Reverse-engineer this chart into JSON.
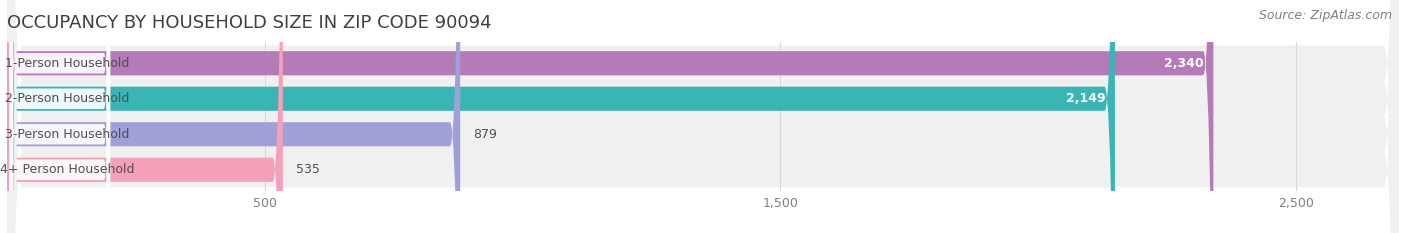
{
  "title": "OCCUPANCY BY HOUSEHOLD SIZE IN ZIP CODE 90094",
  "source": "Source: ZipAtlas.com",
  "categories": [
    "1-Person Household",
    "2-Person Household",
    "3-Person Household",
    "4+ Person Household"
  ],
  "values": [
    2340,
    2149,
    879,
    535
  ],
  "bar_colors": [
    "#b57ab8",
    "#3ab5b5",
    "#a0a0d8",
    "#f4a0b8"
  ],
  "xlim": [
    0,
    2700
  ],
  "xticks": [
    500,
    1500,
    2500
  ],
  "title_fontsize": 13,
  "source_fontsize": 9,
  "label_fontsize": 9,
  "value_fontsize": 9,
  "bar_height": 0.68,
  "figsize": [
    14.06,
    2.33
  ],
  "dpi": 100,
  "bg_color": "#ffffff",
  "row_bg_color": "#f0f0f0",
  "grid_color": "#d8d8d8",
  "title_color": "#404040",
  "source_color": "#808080",
  "tick_color": "#808080",
  "label_text_color": "#505050",
  "value_color_inside": "#ffffff",
  "value_color_outside": "#505050"
}
